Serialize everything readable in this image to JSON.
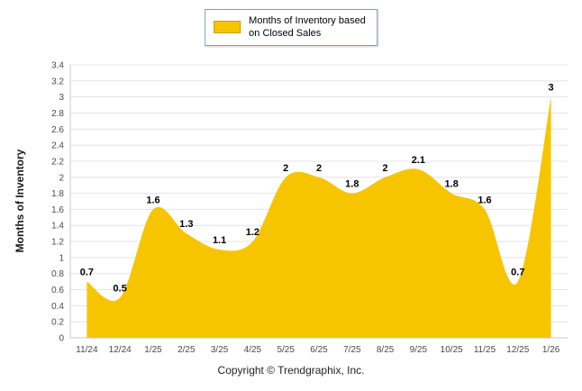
{
  "legend": {
    "line1": "Months of Inventory based",
    "line2": "on Closed Sales"
  },
  "footer": {
    "copyright": "Copyright © Trendgraphix, Inc."
  },
  "chart_data": {
    "type": "area",
    "title": "",
    "legend_entries": [
      "Months of Inventory based on Closed Sales"
    ],
    "legend_position": "top-center",
    "categories": [
      "11/24",
      "12/24",
      "1/25",
      "2/25",
      "3/25",
      "4/25",
      "5/25",
      "6/25",
      "7/25",
      "8/25",
      "9/25",
      "10/25",
      "11/25",
      "12/25",
      "1/26"
    ],
    "values": [
      0.7,
      0.5,
      1.6,
      1.3,
      1.1,
      1.2,
      2,
      2,
      1.8,
      2,
      2.1,
      1.8,
      1.6,
      0.7,
      3
    ],
    "point_labels": [
      "0.7",
      "0.5",
      "1.6",
      "1.3",
      "1.1",
      "1.2",
      "2",
      "2",
      "1.8",
      "2",
      "2.1",
      "1.8",
      "1.6",
      "0.7",
      "3"
    ],
    "xlabel": "",
    "ylabel": "Months of Inventory",
    "ylim": [
      0,
      3.4
    ],
    "ytick_step": 0.2,
    "ytick_labels": [
      "0",
      "0.2",
      "0.4",
      "0.6",
      "0.8",
      "1",
      "1.2",
      "1.4",
      "1.6",
      "1.8",
      "2",
      "2.2",
      "2.4",
      "2.6",
      "2.8",
      "3",
      "3.2",
      "3.4"
    ],
    "grid": true,
    "smooth": true,
    "area_color": "#F7C500",
    "data_label_color": "#000000"
  }
}
